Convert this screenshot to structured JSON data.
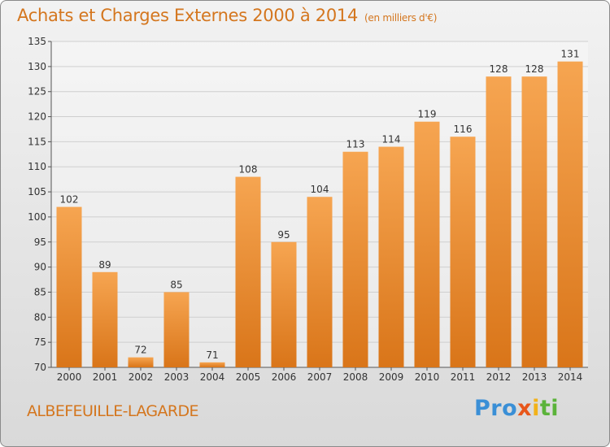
{
  "title": "Achats et Charges Externes 2000 à 2014",
  "unit": "(en milliers d'€)",
  "commune": "ALBEFEUILLE-LAGARDE",
  "logo": {
    "p1": "Pro",
    "p2": "x",
    "p3": "i",
    "p4": "ti"
  },
  "colors": {
    "bar_top": "#f6a551",
    "bar_bottom": "#d97519",
    "title": "#d4761e",
    "text": "#333333",
    "grid": "#cfcfcf"
  },
  "chart_data": {
    "type": "bar",
    "categories": [
      "2000",
      "2001",
      "2002",
      "2003",
      "2004",
      "2005",
      "2006",
      "2007",
      "2008",
      "2009",
      "2010",
      "2011",
      "2012",
      "2013",
      "2014"
    ],
    "values": [
      102,
      89,
      72,
      85,
      71,
      108,
      95,
      104,
      113,
      114,
      119,
      116,
      128,
      128,
      131
    ],
    "title": "Achats et Charges Externes 2000 à 2014",
    "ylim": [
      70,
      135
    ],
    "yticks": [
      70,
      75,
      80,
      85,
      90,
      95,
      100,
      105,
      110,
      115,
      120,
      125,
      130,
      135
    ],
    "grid": true,
    "data_labels": true
  }
}
